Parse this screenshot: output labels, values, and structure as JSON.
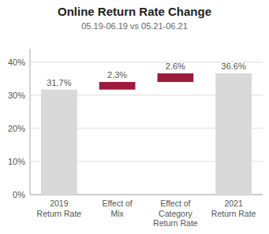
{
  "chart_data": {
    "type": "waterfall",
    "title": "Online Return Rate Change",
    "subtitle": "05.19-06.19 vs 05.21-06.21",
    "categories": [
      "2019\nReturn Rate",
      "Effect of\nMix",
      "Effect of\nCategory\nReturn Rate",
      "2021\nReturn Rate"
    ],
    "values": [
      31.7,
      2.3,
      2.6,
      36.6
    ],
    "bottoms": [
      0,
      31.7,
      34.0,
      0
    ],
    "value_labels": [
      "31.7%",
      "2.3%",
      "2.6%",
      "36.6%"
    ],
    "colors": [
      "#d9d9d9",
      "#9b1b3b",
      "#9b1b3b",
      "#d9d9d9"
    ],
    "data_labels": true,
    "ylim": [
      0,
      44
    ],
    "yticks": [
      {
        "value": 0,
        "label": "0%"
      },
      {
        "value": 10,
        "label": "10%"
      },
      {
        "value": 20,
        "label": "20%"
      },
      {
        "value": 30,
        "label": "30%"
      },
      {
        "value": 40,
        "label": "40%"
      }
    ],
    "grid": true
  }
}
